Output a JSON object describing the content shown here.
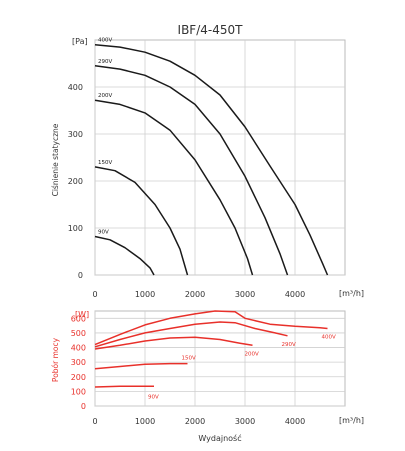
{
  "title": "IBF/4-450T",
  "x_unit": "[m³/h]",
  "x_label": "Wydajność",
  "chart_data": [
    {
      "type": "line",
      "name": "pressure",
      "ylabel": "Ciśnienie statyczne",
      "y_unit": "[Pa]",
      "xlim": [
        0,
        5000
      ],
      "ylim": [
        0,
        500
      ],
      "x_ticks": [
        "0",
        "1000",
        "2000",
        "3000",
        "4000"
      ],
      "y_ticks": [
        "0",
        "100",
        "200",
        "300",
        "400"
      ],
      "grid": true,
      "line_color": "#1a1a1a",
      "series": [
        {
          "name": "400V",
          "points": [
            [
              0,
              490
            ],
            [
              500,
              485
            ],
            [
              1000,
              474
            ],
            [
              1500,
              455
            ],
            [
              2000,
              425
            ],
            [
              2500,
              383
            ],
            [
              3000,
              315
            ],
            [
              3500,
              232
            ],
            [
              4000,
              150
            ],
            [
              4300,
              85
            ],
            [
              4550,
              25
            ],
            [
              4650,
              0
            ]
          ]
        },
        {
          "name": "290V",
          "points": [
            [
              0,
              445
            ],
            [
              500,
              438
            ],
            [
              1000,
              425
            ],
            [
              1500,
              400
            ],
            [
              2000,
              363
            ],
            [
              2500,
              300
            ],
            [
              3000,
              210
            ],
            [
              3400,
              122
            ],
            [
              3700,
              45
            ],
            [
              3850,
              0
            ]
          ]
        },
        {
          "name": "200V",
          "points": [
            [
              0,
              372
            ],
            [
              500,
              363
            ],
            [
              1000,
              345
            ],
            [
              1500,
              308
            ],
            [
              2000,
              245
            ],
            [
              2500,
              160
            ],
            [
              2800,
              100
            ],
            [
              3050,
              35
            ],
            [
              3150,
              0
            ]
          ]
        },
        {
          "name": "150V",
          "points": [
            [
              0,
              230
            ],
            [
              400,
              222
            ],
            [
              800,
              197
            ],
            [
              1200,
              150
            ],
            [
              1500,
              100
            ],
            [
              1700,
              55
            ],
            [
              1850,
              0
            ]
          ]
        },
        {
          "name": "90V",
          "points": [
            [
              0,
              82
            ],
            [
              300,
              75
            ],
            [
              600,
              58
            ],
            [
              900,
              35
            ],
            [
              1100,
              15
            ],
            [
              1180,
              0
            ]
          ]
        }
      ]
    },
    {
      "type": "line",
      "name": "power",
      "ylabel": "Pobór mocy",
      "y_unit": "[W]",
      "xlim": [
        0,
        5000
      ],
      "ylim": [
        0,
        650
      ],
      "x_ticks": [
        "0",
        "1000",
        "2000",
        "3000",
        "4000"
      ],
      "y_ticks": [
        "0",
        "100",
        "200",
        "300",
        "400",
        "500",
        "600"
      ],
      "grid": true,
      "line_color": "#e8302a",
      "series": [
        {
          "name": "400V",
          "points": [
            [
              0,
              420
            ],
            [
              500,
              490
            ],
            [
              1000,
              555
            ],
            [
              1500,
              600
            ],
            [
              2000,
              630
            ],
            [
              2400,
              650
            ],
            [
              2800,
              645
            ],
            [
              3000,
              600
            ],
            [
              3500,
              560
            ],
            [
              4000,
              545
            ],
            [
              4500,
              535
            ],
            [
              4650,
              530
            ]
          ]
        },
        {
          "name": "290V",
          "points": [
            [
              0,
              405
            ],
            [
              500,
              455
            ],
            [
              1000,
              500
            ],
            [
              1500,
              530
            ],
            [
              2000,
              560
            ],
            [
              2500,
              575
            ],
            [
              2800,
              570
            ],
            [
              3200,
              530
            ],
            [
              3600,
              500
            ],
            [
              3850,
              480
            ]
          ]
        },
        {
          "name": "200V",
          "points": [
            [
              0,
              390
            ],
            [
              500,
              415
            ],
            [
              1000,
              445
            ],
            [
              1500,
              465
            ],
            [
              2000,
              470
            ],
            [
              2500,
              455
            ],
            [
              2900,
              430
            ],
            [
              3150,
              415
            ]
          ]
        },
        {
          "name": "150V",
          "points": [
            [
              0,
              255
            ],
            [
              500,
              270
            ],
            [
              1000,
              285
            ],
            [
              1500,
              290
            ],
            [
              1850,
              290
            ]
          ]
        },
        {
          "name": "90V",
          "points": [
            [
              0,
              130
            ],
            [
              500,
              135
            ],
            [
              1000,
              135
            ],
            [
              1180,
              135
            ]
          ]
        }
      ]
    }
  ]
}
